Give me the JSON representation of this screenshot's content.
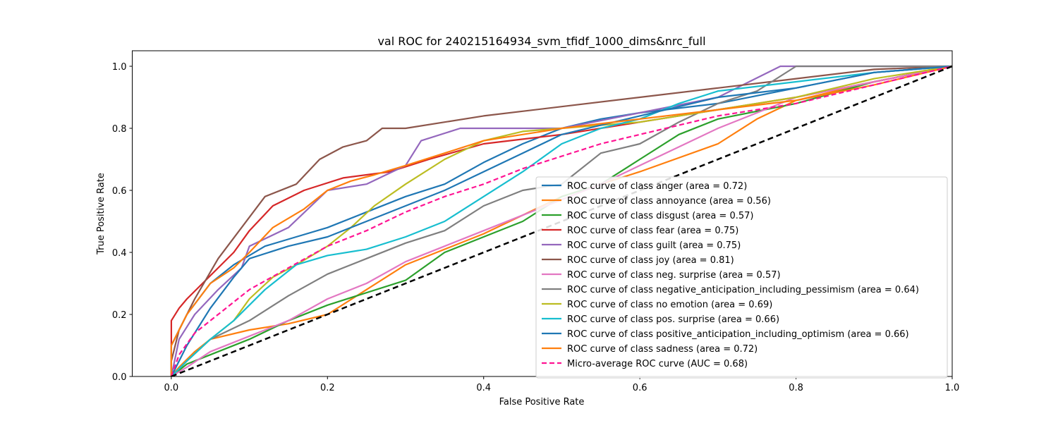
{
  "chart_data": {
    "type": "line",
    "title": "val ROC for 240215164934_svm_tfidf_1000_dims&nrc_full",
    "xlabel": "False Positive Rate",
    "ylabel": "True Positive Rate",
    "xlim": [
      -0.05,
      1.0
    ],
    "ylim": [
      0.0,
      1.05
    ],
    "xticks": [
      "0.0",
      "0.2",
      "0.4",
      "0.6",
      "0.8",
      "1.0"
    ],
    "yticks": [
      "0.0",
      "0.2",
      "0.4",
      "0.6",
      "0.8",
      "1.0"
    ],
    "legend_position": "lower-right",
    "grid": false,
    "diagonal": {
      "name": "chance",
      "color": "#000000",
      "dash": "dashed"
    },
    "series": [
      {
        "name": "ROC curve of class anger (area = 0.72)",
        "color": "#1f77b4",
        "dash": "solid",
        "x": [
          0,
          0,
          0.02,
          0.05,
          0.08,
          0.12,
          0.16,
          0.2,
          0.25,
          0.3,
          0.35,
          0.4,
          0.45,
          0.5,
          0.55,
          0.6,
          0.7,
          0.8,
          0.9,
          1.0
        ],
        "y": [
          0,
          0.1,
          0.2,
          0.3,
          0.36,
          0.42,
          0.45,
          0.48,
          0.53,
          0.58,
          0.62,
          0.69,
          0.75,
          0.8,
          0.83,
          0.85,
          0.88,
          0.93,
          0.98,
          1.0
        ]
      },
      {
        "name": "ROC curve of class annoyance (area = 0.56)",
        "color": "#ff7f0e",
        "dash": "solid",
        "x": [
          0,
          0.01,
          0.03,
          0.05,
          0.1,
          0.15,
          0.2,
          0.25,
          0.3,
          0.4,
          0.5,
          0.6,
          0.7,
          0.75,
          0.8,
          0.9,
          1.0
        ],
        "y": [
          0,
          0.03,
          0.08,
          0.12,
          0.15,
          0.17,
          0.2,
          0.28,
          0.36,
          0.46,
          0.58,
          0.66,
          0.75,
          0.83,
          0.89,
          0.95,
          1.0
        ]
      },
      {
        "name": "ROC curve of class disgust (area = 0.57)",
        "color": "#2ca02c",
        "dash": "solid",
        "x": [
          0,
          0.02,
          0.05,
          0.1,
          0.15,
          0.2,
          0.3,
          0.35,
          0.4,
          0.45,
          0.5,
          0.55,
          0.6,
          0.65,
          0.7,
          0.8,
          0.9,
          1.0
        ],
        "y": [
          0,
          0.04,
          0.07,
          0.12,
          0.18,
          0.23,
          0.31,
          0.4,
          0.45,
          0.5,
          0.58,
          0.62,
          0.7,
          0.78,
          0.83,
          0.88,
          0.95,
          1.0
        ]
      },
      {
        "name": "ROC curve of class fear (area = 0.75)",
        "color": "#d62728",
        "dash": "solid",
        "x": [
          0,
          0,
          0.01,
          0.02,
          0.04,
          0.06,
          0.08,
          0.1,
          0.13,
          0.17,
          0.22,
          0.28,
          0.33,
          0.4,
          0.5,
          0.6,
          0.7,
          0.8,
          0.9,
          1.0
        ],
        "y": [
          0,
          0.18,
          0.22,
          0.25,
          0.3,
          0.35,
          0.4,
          0.47,
          0.55,
          0.6,
          0.64,
          0.66,
          0.7,
          0.75,
          0.78,
          0.82,
          0.86,
          0.9,
          0.95,
          1.0
        ]
      },
      {
        "name": "ROC curve of class guilt (area = 0.75)",
        "color": "#9467bd",
        "dash": "solid",
        "x": [
          0,
          0.01,
          0.03,
          0.06,
          0.09,
          0.1,
          0.15,
          0.2,
          0.25,
          0.3,
          0.32,
          0.37,
          0.45,
          0.5,
          0.6,
          0.7,
          0.78,
          0.8,
          0.9,
          1.0
        ],
        "y": [
          0,
          0.12,
          0.2,
          0.28,
          0.35,
          0.42,
          0.48,
          0.6,
          0.62,
          0.68,
          0.76,
          0.8,
          0.8,
          0.8,
          0.85,
          0.9,
          1.0,
          1.0,
          1.0,
          1.0
        ]
      },
      {
        "name": "ROC curve of class joy (area = 0.81)",
        "color": "#8c564b",
        "dash": "solid",
        "x": [
          0,
          0,
          0.01,
          0.03,
          0.06,
          0.09,
          0.12,
          0.16,
          0.19,
          0.22,
          0.25,
          0.27,
          0.3,
          0.35,
          0.4,
          0.5,
          0.6,
          0.7,
          0.8,
          0.9,
          1.0
        ],
        "y": [
          0,
          0.05,
          0.15,
          0.25,
          0.38,
          0.48,
          0.58,
          0.62,
          0.7,
          0.74,
          0.76,
          0.8,
          0.8,
          0.82,
          0.84,
          0.87,
          0.9,
          0.93,
          0.96,
          0.99,
          1.0
        ]
      },
      {
        "name": "ROC curve of class neg. surprise (area = 0.57)",
        "color": "#e377c2",
        "dash": "solid",
        "x": [
          0,
          0.02,
          0.05,
          0.1,
          0.15,
          0.2,
          0.25,
          0.3,
          0.35,
          0.4,
          0.45,
          0.5,
          0.55,
          0.6,
          0.65,
          0.7,
          0.75,
          0.8,
          0.9,
          1.0
        ],
        "y": [
          0,
          0.03,
          0.08,
          0.13,
          0.18,
          0.25,
          0.3,
          0.37,
          0.42,
          0.47,
          0.52,
          0.57,
          0.62,
          0.68,
          0.74,
          0.8,
          0.85,
          0.9,
          0.95,
          1.0
        ]
      },
      {
        "name": "ROC curve of class negative_anticipation_including_pessimism (area = 0.64)",
        "color": "#7f7f7f",
        "dash": "solid",
        "x": [
          0,
          0.02,
          0.05,
          0.1,
          0.15,
          0.2,
          0.25,
          0.3,
          0.35,
          0.4,
          0.45,
          0.5,
          0.55,
          0.6,
          0.65,
          0.7,
          0.75,
          0.8,
          0.9,
          1.0
        ],
        "y": [
          0,
          0.05,
          0.12,
          0.18,
          0.26,
          0.33,
          0.38,
          0.43,
          0.47,
          0.55,
          0.6,
          0.62,
          0.72,
          0.75,
          0.82,
          0.88,
          0.92,
          1.0,
          1.0,
          1.0
        ]
      },
      {
        "name": "ROC curve of class no emotion (area = 0.69)",
        "color": "#bcbd22",
        "dash": "solid",
        "x": [
          0,
          0.02,
          0.05,
          0.08,
          0.1,
          0.13,
          0.16,
          0.2,
          0.23,
          0.26,
          0.3,
          0.35,
          0.4,
          0.45,
          0.5,
          0.6,
          0.7,
          0.8,
          0.9,
          1.0
        ],
        "y": [
          0,
          0.05,
          0.12,
          0.18,
          0.25,
          0.32,
          0.36,
          0.42,
          0.48,
          0.55,
          0.62,
          0.7,
          0.76,
          0.79,
          0.8,
          0.82,
          0.86,
          0.9,
          0.96,
          1.0
        ]
      },
      {
        "name": "ROC curve of class pos. surprise (area = 0.66)",
        "color": "#17becf",
        "dash": "solid",
        "x": [
          0,
          0.02,
          0.05,
          0.08,
          0.12,
          0.16,
          0.2,
          0.25,
          0.3,
          0.35,
          0.4,
          0.45,
          0.5,
          0.55,
          0.6,
          0.65,
          0.7,
          0.8,
          0.9,
          1.0
        ],
        "y": [
          0,
          0.05,
          0.12,
          0.18,
          0.28,
          0.36,
          0.39,
          0.41,
          0.45,
          0.5,
          0.58,
          0.66,
          0.75,
          0.8,
          0.83,
          0.88,
          0.92,
          0.95,
          0.98,
          1.0
        ]
      },
      {
        "name": "ROC curve of class positive_anticipation_including_optimism (area = 0.66)",
        "color": "#1f77b4",
        "dash": "solid",
        "x": [
          0,
          0.02,
          0.05,
          0.08,
          0.1,
          0.15,
          0.2,
          0.25,
          0.3,
          0.35,
          0.4,
          0.45,
          0.5,
          0.55,
          0.6,
          0.65,
          0.7,
          0.8,
          0.9,
          1.0
        ],
        "y": [
          0,
          0.1,
          0.22,
          0.32,
          0.38,
          0.42,
          0.45,
          0.5,
          0.55,
          0.6,
          0.66,
          0.72,
          0.78,
          0.81,
          0.84,
          0.87,
          0.9,
          0.93,
          0.98,
          1.0
        ]
      },
      {
        "name": "ROC curve of class sadness (area = 0.72)",
        "color": "#ff7f0e",
        "dash": "solid",
        "x": [
          0,
          0,
          0.02,
          0.05,
          0.08,
          0.1,
          0.13,
          0.17,
          0.2,
          0.23,
          0.26,
          0.3,
          0.35,
          0.4,
          0.5,
          0.6,
          0.7,
          0.8,
          0.9,
          1.0
        ],
        "y": [
          0,
          0.1,
          0.2,
          0.3,
          0.35,
          0.4,
          0.48,
          0.54,
          0.6,
          0.63,
          0.65,
          0.68,
          0.72,
          0.76,
          0.8,
          0.83,
          0.86,
          0.89,
          0.94,
          1.0
        ]
      },
      {
        "name": "Micro-average ROC curve (AUC = 0.68)",
        "color": "#ff1493",
        "dash": "dashed",
        "x": [
          0,
          0.01,
          0.03,
          0.06,
          0.1,
          0.15,
          0.2,
          0.25,
          0.3,
          0.35,
          0.4,
          0.45,
          0.5,
          0.55,
          0.6,
          0.65,
          0.7,
          0.8,
          0.9,
          1.0
        ],
        "y": [
          0,
          0.07,
          0.14,
          0.2,
          0.28,
          0.35,
          0.42,
          0.47,
          0.53,
          0.58,
          0.62,
          0.67,
          0.71,
          0.75,
          0.78,
          0.81,
          0.84,
          0.88,
          0.94,
          1.0
        ]
      }
    ]
  }
}
